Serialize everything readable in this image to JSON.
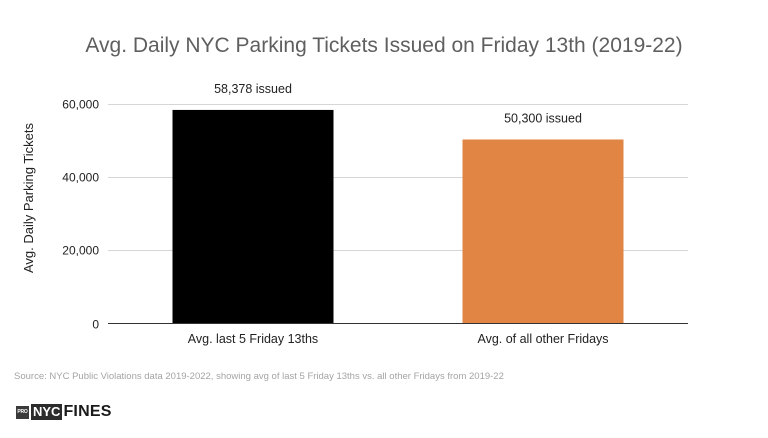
{
  "chart_data": {
    "type": "bar",
    "title": "Avg. Daily NYC Parking Tickets Issued on Friday 13th (2019-22)",
    "xlabel": "",
    "ylabel": "Avg. Daily Parking Tickets",
    "categories": [
      "Avg. last 5 Friday 13ths",
      "Avg. of all other Fridays"
    ],
    "values": [
      58378,
      50300
    ],
    "data_labels": [
      "58,378 issued",
      "50,300 issued"
    ],
    "colors": [
      "#000000",
      "#e08543"
    ],
    "ylim": [
      0,
      60000
    ],
    "yticks": [
      0,
      20000,
      40000,
      60000
    ],
    "ytick_labels": [
      "0",
      "20,000",
      "40,000",
      "60,000"
    ],
    "grid": true,
    "legend": "none"
  },
  "footer": {
    "source": "Source: NYC Public Violations data 2019-2022, showing avg of last 5 Friday 13ths vs. all other Fridays from 2019-22",
    "logo_mark": "PRO",
    "logo_nyc": "NYC",
    "logo_fines": "FINES"
  }
}
